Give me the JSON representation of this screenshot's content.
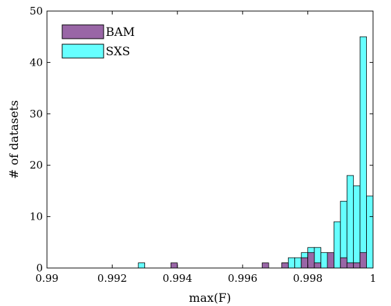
{
  "chart_data": {
    "type": "bar",
    "subtype": "overlaid-histogram",
    "title": "",
    "xlabel": "max(F)",
    "ylabel": "# of datasets",
    "xlim": [
      0.99,
      1.0
    ],
    "ylim": [
      0,
      50
    ],
    "xticks": [
      0.99,
      0.992,
      0.994,
      0.996,
      0.998,
      1
    ],
    "xtick_labels": [
      "0.99",
      "0.992",
      "0.994",
      "0.996",
      "0.998",
      "1"
    ],
    "yticks": [
      0,
      10,
      20,
      30,
      40,
      50
    ],
    "ytick_labels": [
      "0",
      "10",
      "20",
      "30",
      "40",
      "50"
    ],
    "bin_width": 0.0002,
    "grid": false,
    "legend_position": "top-left",
    "series": [
      {
        "name": "SXS",
        "color": "#66ffff",
        "bin_starts": [
          0.9928,
          0.9972,
          0.9974,
          0.9976,
          0.9978,
          0.998,
          0.9982,
          0.9984,
          0.9986,
          0.9988,
          0.999,
          0.9992,
          0.9994,
          0.9996,
          0.9998
        ],
        "counts": [
          1,
          1,
          2,
          2,
          3,
          4,
          4,
          3,
          2,
          9,
          13,
          18,
          16,
          45,
          14
        ]
      },
      {
        "name": "BAM",
        "color": "#9966a6",
        "bin_starts": [
          0.9938,
          0.9966,
          0.9972,
          0.9978,
          0.998,
          0.9982,
          0.9986,
          0.999,
          0.9992,
          0.9994,
          0.9996
        ],
        "counts": [
          1,
          1,
          1,
          2,
          3,
          1,
          3,
          2,
          1,
          1,
          3
        ]
      }
    ]
  }
}
